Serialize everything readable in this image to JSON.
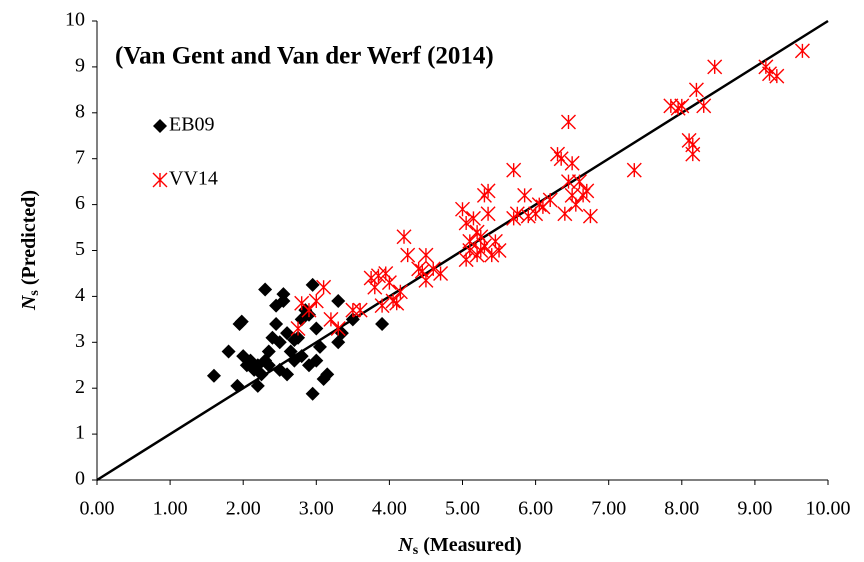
{
  "chart_data": {
    "type": "scatter",
    "annotation": "(Van Gent and Van der Werf (2014)",
    "x_label": {
      "symbol": "N",
      "subscript": "s",
      "text": "(Measured)"
    },
    "y_label": {
      "symbol": "N",
      "subscript": "s",
      "text": "(Predicted)"
    },
    "xlim": [
      0,
      10
    ],
    "ylim": [
      0,
      10
    ],
    "xticks": [
      {
        "value": 0,
        "label": "0.00"
      },
      {
        "value": 1,
        "label": "1.00"
      },
      {
        "value": 2,
        "label": "2.00"
      },
      {
        "value": 3,
        "label": "3.00"
      },
      {
        "value": 4,
        "label": "4.00"
      },
      {
        "value": 5,
        "label": "5.00"
      },
      {
        "value": 6,
        "label": "6.00"
      },
      {
        "value": 7,
        "label": "7.00"
      },
      {
        "value": 8,
        "label": "8.00"
      },
      {
        "value": 9,
        "label": "9.00"
      },
      {
        "value": 10,
        "label": "10.00"
      }
    ],
    "yticks": [
      0,
      1,
      2,
      3,
      4,
      5,
      6,
      7,
      8,
      9,
      10
    ],
    "grid": false,
    "legend": "upper-left",
    "reference_line": {
      "x": [
        0,
        10
      ],
      "y": [
        0,
        10
      ],
      "color": "#000000"
    },
    "series": [
      {
        "name": "EB09",
        "color": "#000000",
        "marker": "diamond",
        "x": [
          1.6,
          1.8,
          1.92,
          1.95,
          1.98,
          2.0,
          2.05,
          2.1,
          2.15,
          2.2,
          2.25,
          2.3,
          2.3,
          2.35,
          2.4,
          2.45,
          2.45,
          2.5,
          2.5,
          2.55,
          2.55,
          2.6,
          2.6,
          2.7,
          2.7,
          2.75,
          2.8,
          2.8,
          2.85,
          2.9,
          2.9,
          2.95,
          2.95,
          3.0,
          3.0,
          3.05,
          3.1,
          3.15,
          3.3,
          3.3,
          3.35,
          3.5,
          3.9,
          2.35,
          2.2,
          2.65
        ],
        "y": [
          2.27,
          2.8,
          2.05,
          3.4,
          3.45,
          2.7,
          2.5,
          2.6,
          2.4,
          2.05,
          2.3,
          4.15,
          2.6,
          2.8,
          3.1,
          3.4,
          3.8,
          2.4,
          3.0,
          3.9,
          4.05,
          2.3,
          3.2,
          3.05,
          2.6,
          3.1,
          3.5,
          2.7,
          3.7,
          3.6,
          2.5,
          1.88,
          4.25,
          3.3,
          2.6,
          2.9,
          2.2,
          2.3,
          3.9,
          3.0,
          3.2,
          3.5,
          3.4,
          2.5,
          2.5,
          2.8
        ]
      },
      {
        "name": "VV14",
        "color": "#ff0000",
        "marker": "asterisk",
        "x": [
          2.75,
          2.8,
          2.9,
          3.0,
          3.1,
          3.2,
          3.3,
          3.5,
          3.6,
          3.75,
          3.8,
          3.85,
          3.9,
          3.95,
          4.0,
          4.05,
          4.1,
          4.15,
          4.2,
          4.25,
          4.4,
          4.45,
          4.5,
          4.5,
          4.6,
          4.7,
          5.0,
          5.05,
          5.05,
          5.1,
          5.1,
          5.15,
          5.2,
          5.2,
          5.25,
          5.25,
          5.3,
          5.3,
          5.35,
          5.35,
          5.4,
          5.45,
          5.5,
          5.7,
          5.7,
          5.75,
          5.85,
          5.9,
          6.0,
          6.05,
          6.1,
          6.2,
          6.3,
          6.35,
          6.4,
          6.45,
          6.45,
          6.5,
          6.5,
          6.55,
          6.6,
          6.65,
          6.7,
          6.75,
          7.35,
          7.85,
          7.95,
          8.0,
          8.1,
          8.15,
          8.15,
          8.2,
          8.3,
          8.45,
          9.15,
          9.2,
          9.3,
          9.65
        ],
        "y": [
          3.3,
          3.85,
          3.7,
          3.9,
          4.2,
          3.5,
          3.3,
          3.7,
          3.7,
          4.4,
          4.2,
          4.45,
          3.8,
          4.5,
          4.3,
          3.9,
          3.85,
          4.1,
          5.3,
          4.9,
          4.6,
          4.55,
          4.35,
          4.9,
          4.6,
          4.5,
          5.9,
          5.6,
          4.8,
          5.2,
          5.0,
          5.7,
          5.4,
          4.9,
          5.3,
          5.0,
          5.1,
          6.2,
          6.3,
          5.8,
          4.9,
          5.2,
          5.0,
          6.75,
          5.7,
          5.8,
          6.2,
          5.75,
          5.8,
          6.0,
          5.95,
          6.1,
          7.1,
          7.0,
          5.8,
          6.5,
          7.8,
          6.9,
          6.2,
          6.0,
          6.5,
          6.2,
          6.3,
          5.75,
          6.75,
          8.15,
          8.1,
          8.15,
          7.4,
          7.3,
          7.1,
          8.5,
          8.15,
          9.0,
          9.0,
          8.85,
          8.8,
          9.35
        ]
      }
    ]
  }
}
